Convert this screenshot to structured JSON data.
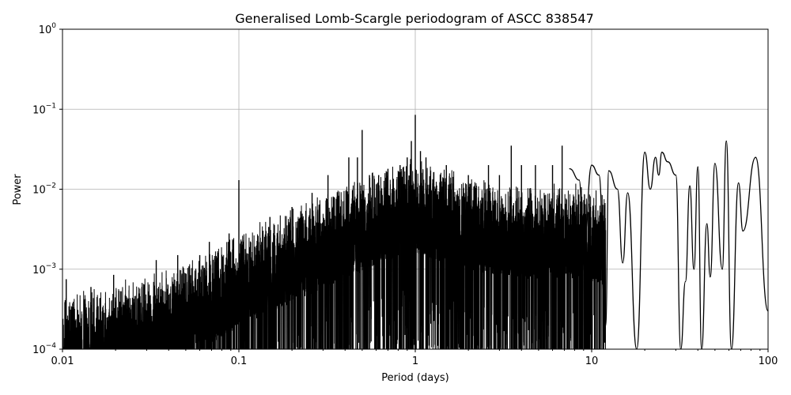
{
  "chart_data": {
    "type": "line",
    "title": "Generalised Lomb-Scargle periodogram of ASCC 838547",
    "xlabel": "Period (days)",
    "ylabel": "Power",
    "xscale": "log",
    "yscale": "log",
    "xlim": [
      0.01,
      100
    ],
    "ylim": [
      0.0001,
      1
    ],
    "grid": true,
    "line_color": "#000000",
    "xticks": [
      {
        "value": 0.01,
        "label": "0.01"
      },
      {
        "value": 0.1,
        "label": "0.1"
      },
      {
        "value": 1,
        "label": "1"
      },
      {
        "value": 10,
        "label": "10"
      },
      {
        "value": 100,
        "label": "100"
      }
    ],
    "yticks": [
      {
        "value": 0.0001,
        "base": "10",
        "exp": "−4"
      },
      {
        "value": 0.001,
        "base": "10",
        "exp": "−3"
      },
      {
        "value": 0.01,
        "base": "10",
        "exp": "−2"
      },
      {
        "value": 0.1,
        "base": "10",
        "exp": "−1"
      },
      {
        "value": 1,
        "base": "10",
        "exp": "0"
      }
    ],
    "noise_envelope": [
      {
        "x": 0.01,
        "y": 0.0005
      },
      {
        "x": 0.02,
        "y": 0.0007
      },
      {
        "x": 0.05,
        "y": 0.0012
      },
      {
        "x": 0.1,
        "y": 0.003
      },
      {
        "x": 0.2,
        "y": 0.006
      },
      {
        "x": 0.4,
        "y": 0.012
      },
      {
        "x": 0.7,
        "y": 0.02
      },
      {
        "x": 1.0,
        "y": 0.025
      },
      {
        "x": 2.0,
        "y": 0.015
      },
      {
        "x": 4.0,
        "y": 0.012
      },
      {
        "x": 8.0,
        "y": 0.012
      },
      {
        "x": 12.0,
        "y": 0.01
      }
    ],
    "spikes": [
      {
        "x": 0.0105,
        "y": 0.00075
      },
      {
        "x": 0.0145,
        "y": 0.0006
      },
      {
        "x": 0.0195,
        "y": 0.00085
      },
      {
        "x": 0.034,
        "y": 0.0013
      },
      {
        "x": 0.045,
        "y": 0.0015
      },
      {
        "x": 0.06,
        "y": 0.0015
      },
      {
        "x": 0.068,
        "y": 0.0022
      },
      {
        "x": 0.088,
        "y": 0.0028
      },
      {
        "x": 0.1,
        "y": 0.013
      },
      {
        "x": 0.15,
        "y": 0.0045
      },
      {
        "x": 0.2,
        "y": 0.006
      },
      {
        "x": 0.26,
        "y": 0.009
      },
      {
        "x": 0.32,
        "y": 0.015
      },
      {
        "x": 0.36,
        "y": 0.008
      },
      {
        "x": 0.42,
        "y": 0.025
      },
      {
        "x": 0.47,
        "y": 0.025
      },
      {
        "x": 0.5,
        "y": 0.055
      },
      {
        "x": 0.55,
        "y": 0.015
      },
      {
        "x": 0.62,
        "y": 0.015
      },
      {
        "x": 0.7,
        "y": 0.018
      },
      {
        "x": 0.82,
        "y": 0.02
      },
      {
        "x": 0.9,
        "y": 0.025
      },
      {
        "x": 0.95,
        "y": 0.04
      },
      {
        "x": 1.0,
        "y": 0.085
      },
      {
        "x": 1.07,
        "y": 0.03
      },
      {
        "x": 1.15,
        "y": 0.025
      },
      {
        "x": 1.5,
        "y": 0.02
      },
      {
        "x": 2.0,
        "y": 0.015
      },
      {
        "x": 2.6,
        "y": 0.02
      },
      {
        "x": 3.0,
        "y": 0.015
      },
      {
        "x": 3.5,
        "y": 0.035
      },
      {
        "x": 4.0,
        "y": 0.02
      },
      {
        "x": 4.8,
        "y": 0.02
      },
      {
        "x": 6.0,
        "y": 0.02
      },
      {
        "x": 6.8,
        "y": 0.035
      }
    ],
    "peaks": [
      {
        "x": 7.5,
        "y": 0.018
      },
      {
        "x": 8.5,
        "y": 0.013
      },
      {
        "x": 10.0,
        "y": 0.02
      },
      {
        "x": 11.0,
        "y": 0.015
      },
      {
        "x": 12.5,
        "y": 0.017
      },
      {
        "x": 14.0,
        "y": 0.01
      },
      {
        "x": 16.0,
        "y": 0.009
      },
      {
        "x": 20.0,
        "y": 0.029
      },
      {
        "x": 23.0,
        "y": 0.025
      },
      {
        "x": 25.0,
        "y": 0.029
      },
      {
        "x": 27.0,
        "y": 0.022
      },
      {
        "x": 30.0,
        "y": 0.015
      },
      {
        "x": 36.0,
        "y": 0.011
      },
      {
        "x": 40.0,
        "y": 0.019
      },
      {
        "x": 45.0,
        "y": 0.0037
      },
      {
        "x": 50.0,
        "y": 0.021
      },
      {
        "x": 58.0,
        "y": 0.04
      },
      {
        "x": 68.0,
        "y": 0.012
      },
      {
        "x": 85.0,
        "y": 0.025
      }
    ],
    "dips": [
      {
        "x": 9.0,
        "y": 0.0015
      },
      {
        "x": 12.0,
        "y": 0.0002
      },
      {
        "x": 15.0,
        "y": 0.0012
      },
      {
        "x": 18.0,
        "y": 0.0001
      },
      {
        "x": 21.5,
        "y": 0.01
      },
      {
        "x": 24.0,
        "y": 0.015
      },
      {
        "x": 32.0,
        "y": 0.0001
      },
      {
        "x": 34.0,
        "y": 0.0007
      },
      {
        "x": 38.0,
        "y": 0.001
      },
      {
        "x": 42.0,
        "y": 0.0001
      },
      {
        "x": 47.0,
        "y": 0.0008
      },
      {
        "x": 55.0,
        "y": 0.001
      },
      {
        "x": 62.0,
        "y": 0.0001
      },
      {
        "x": 72.0,
        "y": 0.003
      },
      {
        "x": 100.0,
        "y": 0.0003
      }
    ]
  }
}
